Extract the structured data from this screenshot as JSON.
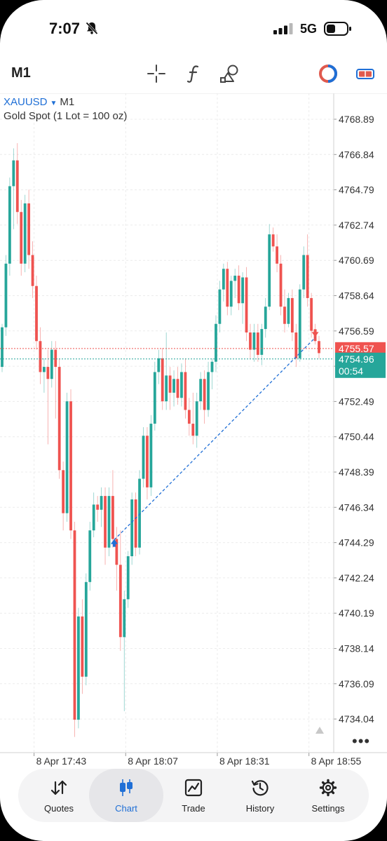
{
  "status": {
    "time": "7:07",
    "network": "5G"
  },
  "toolbar": {
    "timeframe": "M1",
    "icons": [
      "crosshair-icon",
      "function-icon",
      "objects-icon",
      "timeframe-clock-icon",
      "one-click-trading-icon"
    ]
  },
  "chart": {
    "symbol": "XAUUSD",
    "timeframe": "M1",
    "description": "Gold Spot (1 Lot = 100 oz)",
    "bid_price": "4755.57",
    "ask_price": "4754.96",
    "countdown": "00:54",
    "colors": {
      "bull": "#26a69a",
      "bear": "#ef5350",
      "trade_line": "#1f6fd6"
    }
  },
  "chart_data": {
    "type": "candlestick",
    "y_ticks": [
      "4768.89",
      "4766.84",
      "4764.79",
      "4762.74",
      "4760.69",
      "4758.64",
      "4756.59",
      "4754.54",
      "4752.49",
      "4750.44",
      "4748.39",
      "4746.34",
      "4744.29",
      "4742.24",
      "4740.19",
      "4738.14",
      "4736.09",
      "4734.04"
    ],
    "x_ticks": [
      "8 Apr 17:43",
      "8 Apr 18:07",
      "8 Apr 18:31",
      "8 Apr 18:55"
    ],
    "ylim": [
      4732.8,
      4770.0
    ],
    "grid": true,
    "candles": [
      [
        4754.5,
        4757.0,
        4754.2,
        4756.8
      ],
      [
        4756.8,
        4761.0,
        4756.3,
        4760.5
      ],
      [
        4760.5,
        4765.5,
        4759.8,
        4765.0
      ],
      [
        4765.0,
        4767.2,
        4762.5,
        4766.5
      ],
      [
        4766.5,
        4767.5,
        4762.8,
        4763.5
      ],
      [
        4763.5,
        4764.2,
        4759.8,
        4760.5
      ],
      [
        4760.5,
        4764.5,
        4760.0,
        4764.0
      ],
      [
        4764.0,
        4764.8,
        4760.2,
        4761.0
      ],
      [
        4761.0,
        4761.8,
        4758.5,
        4759.2
      ],
      [
        4759.2,
        4759.8,
        4755.5,
        4756.0
      ],
      [
        4756.0,
        4756.8,
        4753.5,
        4754.2
      ],
      [
        4754.2,
        4755.0,
        4753.0,
        4754.5
      ],
      [
        4754.5,
        4755.5,
        4750.0,
        4753.8
      ],
      [
        4753.8,
        4756.0,
        4753.3,
        4755.5
      ],
      [
        4755.5,
        4756.0,
        4751.5,
        4754.5
      ],
      [
        4754.5,
        4755.0,
        4748.0,
        4748.5
      ],
      [
        4748.5,
        4749.0,
        4745.0,
        4746.0
      ],
      [
        4746.0,
        4753.0,
        4745.5,
        4752.5
      ],
      [
        4752.5,
        4753.2,
        4744.5,
        4745.0
      ],
      [
        4745.0,
        4745.5,
        4733.0,
        4734.0
      ],
      [
        4734.0,
        4740.5,
        4733.5,
        4740.0
      ],
      [
        4740.0,
        4741.0,
        4735.5,
        4736.5
      ],
      [
        4736.5,
        4742.5,
        4736.0,
        4742.0
      ],
      [
        4742.0,
        4745.5,
        4741.5,
        4745.0
      ],
      [
        4745.0,
        4747.2,
        4744.6,
        4746.5
      ],
      [
        4746.5,
        4747.0,
        4745.5,
        4746.2
      ],
      [
        4746.2,
        4747.5,
        4745.2,
        4747.0
      ],
      [
        4747.0,
        4747.5,
        4743.0,
        4744.0
      ],
      [
        4744.0,
        4747.5,
        4743.5,
        4747.0
      ],
      [
        4747.0,
        4748.5,
        4744.0,
        4744.5
      ],
      [
        4744.5,
        4745.2,
        4741.5,
        4743.0
      ],
      [
        4743.0,
        4745.0,
        4738.0,
        4738.8
      ],
      [
        4738.8,
        4741.5,
        4734.5,
        4741.0
      ],
      [
        4741.0,
        4743.8,
        4740.5,
        4743.5
      ],
      [
        4743.5,
        4747.2,
        4743.0,
        4746.8
      ],
      [
        4746.8,
        4747.2,
        4743.5,
        4744.0
      ],
      [
        4744.0,
        4748.5,
        4743.6,
        4748.0
      ],
      [
        4748.0,
        4751.0,
        4747.5,
        4750.5
      ],
      [
        4750.5,
        4751.0,
        4746.8,
        4747.5
      ],
      [
        4747.5,
        4751.7,
        4747.0,
        4751.2
      ],
      [
        4751.2,
        4754.8,
        4750.8,
        4754.2
      ],
      [
        4754.2,
        4755.5,
        4753.5,
        4755.0
      ],
      [
        4755.0,
        4755.6,
        4752.0,
        4752.5
      ],
      [
        4752.5,
        4756.5,
        4752.0,
        4754.0
      ],
      [
        4754.0,
        4754.5,
        4752.0,
        4753.0
      ],
      [
        4753.0,
        4754.3,
        4752.2,
        4753.8
      ],
      [
        4753.8,
        4754.5,
        4752.3,
        4752.7
      ],
      [
        4752.7,
        4754.7,
        4752.2,
        4754.2
      ],
      [
        4754.2,
        4755.0,
        4751.5,
        4752.0
      ],
      [
        4752.0,
        4752.7,
        4750.5,
        4751.2
      ],
      [
        4751.2,
        4753.0,
        4750.0,
        4750.5
      ],
      [
        4750.5,
        4753.0,
        4749.8,
        4752.5
      ],
      [
        4752.5,
        4754.2,
        4752.0,
        4753.8
      ],
      [
        4753.8,
        4754.3,
        4751.2,
        4752.0
      ],
      [
        4752.0,
        4754.8,
        4751.6,
        4754.2
      ],
      [
        4754.2,
        4755.0,
        4753.2,
        4754.8
      ],
      [
        4754.8,
        4757.5,
        4754.2,
        4757.0
      ],
      [
        4757.0,
        4759.5,
        4756.5,
        4759.0
      ],
      [
        4759.0,
        4760.5,
        4758.3,
        4760.2
      ],
      [
        4760.2,
        4760.6,
        4757.5,
        4758.0
      ],
      [
        4758.0,
        4759.8,
        4757.5,
        4759.5
      ],
      [
        4759.5,
        4760.2,
        4758.5,
        4759.8
      ],
      [
        4759.8,
        4760.4,
        4757.8,
        4758.2
      ],
      [
        4758.2,
        4760.0,
        4757.0,
        4759.7
      ],
      [
        4759.7,
        4760.3,
        4756.0,
        4756.5
      ],
      [
        4756.5,
        4757.0,
        4755.0,
        4755.5
      ],
      [
        4755.5,
        4757.0,
        4754.8,
        4756.5
      ],
      [
        4756.5,
        4757.0,
        4754.8,
        4755.2
      ],
      [
        4755.2,
        4757.0,
        4754.6,
        4756.7
      ],
      [
        4756.7,
        4758.5,
        4756.2,
        4758.0
      ],
      [
        4758.0,
        4762.8,
        4757.8,
        4762.2
      ],
      [
        4762.2,
        4762.6,
        4761.2,
        4761.5
      ],
      [
        4761.5,
        4762.2,
        4760.0,
        4760.5
      ],
      [
        4760.5,
        4761.0,
        4757.5,
        4758.0
      ],
      [
        4758.0,
        4759.0,
        4756.5,
        4757.0
      ],
      [
        4757.0,
        4758.8,
        4756.8,
        4758.5
      ],
      [
        4758.5,
        4759.0,
        4756.0,
        4756.5
      ],
      [
        4756.5,
        4757.0,
        4754.5,
        4755.0
      ],
      [
        4755.0,
        4759.3,
        4754.8,
        4759.0
      ],
      [
        4759.0,
        4761.5,
        4758.5,
        4761.0
      ],
      [
        4761.0,
        4762.2,
        4758.0,
        4758.5
      ],
      [
        4758.5,
        4758.8,
        4756.2,
        4756.6
      ],
      [
        4756.6,
        4757.0,
        4755.8,
        4756.0
      ],
      [
        4756.0,
        4756.3,
        4755.0,
        4755.3
      ]
    ],
    "trade_open": {
      "candle": 29,
      "price": 4744.29
    },
    "trade_close": {
      "candle": 82,
      "price": 4756.2
    }
  },
  "tabs": [
    {
      "id": "quotes",
      "label": "Quotes",
      "active": false
    },
    {
      "id": "chart",
      "label": "Chart",
      "active": true
    },
    {
      "id": "trade",
      "label": "Trade",
      "active": false
    },
    {
      "id": "history",
      "label": "History",
      "active": false
    },
    {
      "id": "settings",
      "label": "Settings",
      "active": false
    }
  ]
}
